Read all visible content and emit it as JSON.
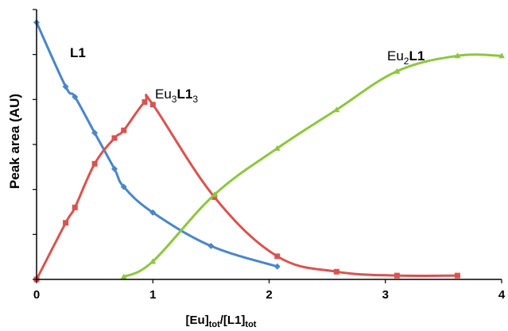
{
  "chart_data": {
    "type": "line",
    "xlabel": {
      "main": "[Eu]",
      "sub1": "tot",
      "mid": "/[L1]",
      "sub2": "tot"
    },
    "ylabel": "Peak area (AU)",
    "xlim": [
      0,
      4
    ],
    "ylim": [
      0,
      105
    ],
    "xticks": [
      "0",
      "1",
      "2",
      "3",
      "4"
    ],
    "yticks_count": 6,
    "grid": false,
    "series": [
      {
        "color": "#4a86c8",
        "marker": "diamond",
        "label": {
          "text": "L1",
          "style": "bold"
        },
        "x": [
          0,
          0.25,
          0.33,
          0.5,
          0.67,
          0.75,
          1.0,
          1.5,
          2.07
        ],
        "y": [
          100,
          75,
          71,
          57,
          43,
          36,
          26,
          13,
          5
        ]
      },
      {
        "color": "#d9534f",
        "marker": "square",
        "label": {
          "text": "Eu",
          "sub": "3",
          "bold": "L1",
          "sub2": "3"
        },
        "x": [
          0,
          0.25,
          0.33,
          0.5,
          0.67,
          0.75,
          0.93,
          1.0,
          1.53,
          2.07,
          2.58,
          3.1,
          3.62
        ],
        "y": [
          0,
          22,
          28,
          45,
          55,
          58,
          69,
          68,
          32,
          9,
          3,
          1.5,
          1.5
        ]
      },
      {
        "color": "#8dc63f",
        "marker": "triangle",
        "label": {
          "text": "Eu",
          "sub": "2",
          "bold": "L1",
          "sub2": ""
        },
        "x": [
          0.75,
          1.0,
          1.53,
          2.07,
          2.58,
          3.1,
          3.62,
          4.0
        ],
        "y": [
          1,
          7,
          33,
          51,
          66,
          81,
          87,
          87
        ]
      }
    ]
  }
}
